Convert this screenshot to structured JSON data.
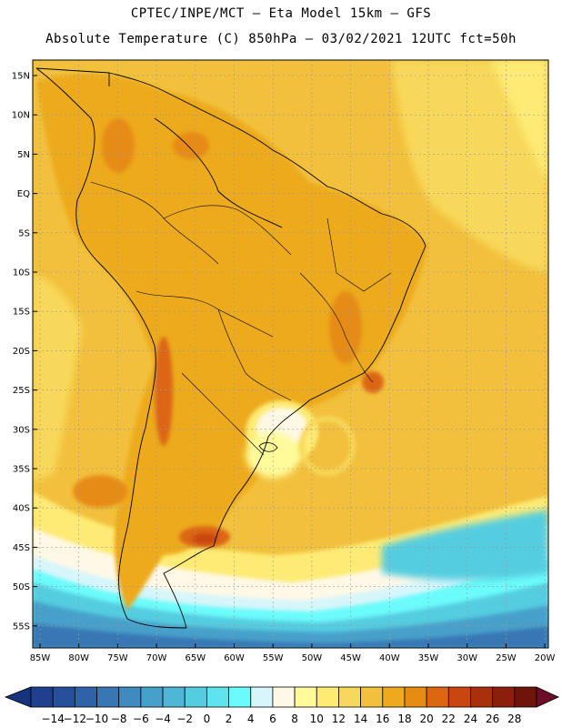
{
  "title_line1": "CPTEC/INPE/MCT —  Eta Model 15km — GFS",
  "title_line2": "Absolute Temperature (C) 850hPa — 03/02/2021 12UTC fct=50h",
  "lat_labels": [
    "15N",
    "10N",
    "5N",
    "EQ",
    "5S",
    "10S",
    "15S",
    "20S",
    "25S",
    "30S",
    "35S",
    "40S",
    "45S",
    "50S",
    "55S"
  ],
  "lon_labels": [
    "85W",
    "80W",
    "75W",
    "70W",
    "65W",
    "60W",
    "55W",
    "50W",
    "45W",
    "40W",
    "35W",
    "30W",
    "25W",
    "20W"
  ],
  "colorbar": {
    "labels": [
      "-14",
      "-12",
      "-10",
      "-8",
      "-6",
      "-4",
      "-2",
      "0",
      "2",
      "4",
      "6",
      "8",
      "10",
      "12",
      "14",
      "16",
      "18",
      "20",
      "22",
      "24",
      "26",
      "28"
    ],
    "colors": [
      "#1f3f8f",
      "#27509c",
      "#2f63a8",
      "#3877b4",
      "#3f8bc0",
      "#47a0ca",
      "#4fb6d6",
      "#55cde0",
      "#5fe3ec",
      "#6cfbfb",
      "#d6f6fb",
      "#fff8e6",
      "#fffb9a",
      "#fdeb74",
      "#f8d85a",
      "#f2c03c",
      "#edaa1e",
      "#e68c12",
      "#dc6612",
      "#c9470f",
      "#a8300c",
      "#8a200b",
      "#6e1409"
    ],
    "left_arrow_color": "#16337d",
    "right_arrow_color": "#6e0d2a"
  },
  "colors": {
    "frame": "#000000",
    "ocean_default": "#f2c03c",
    "continent": "#edaa1e",
    "hot": "#dc6612",
    "cold": "#3f8bc0"
  }
}
